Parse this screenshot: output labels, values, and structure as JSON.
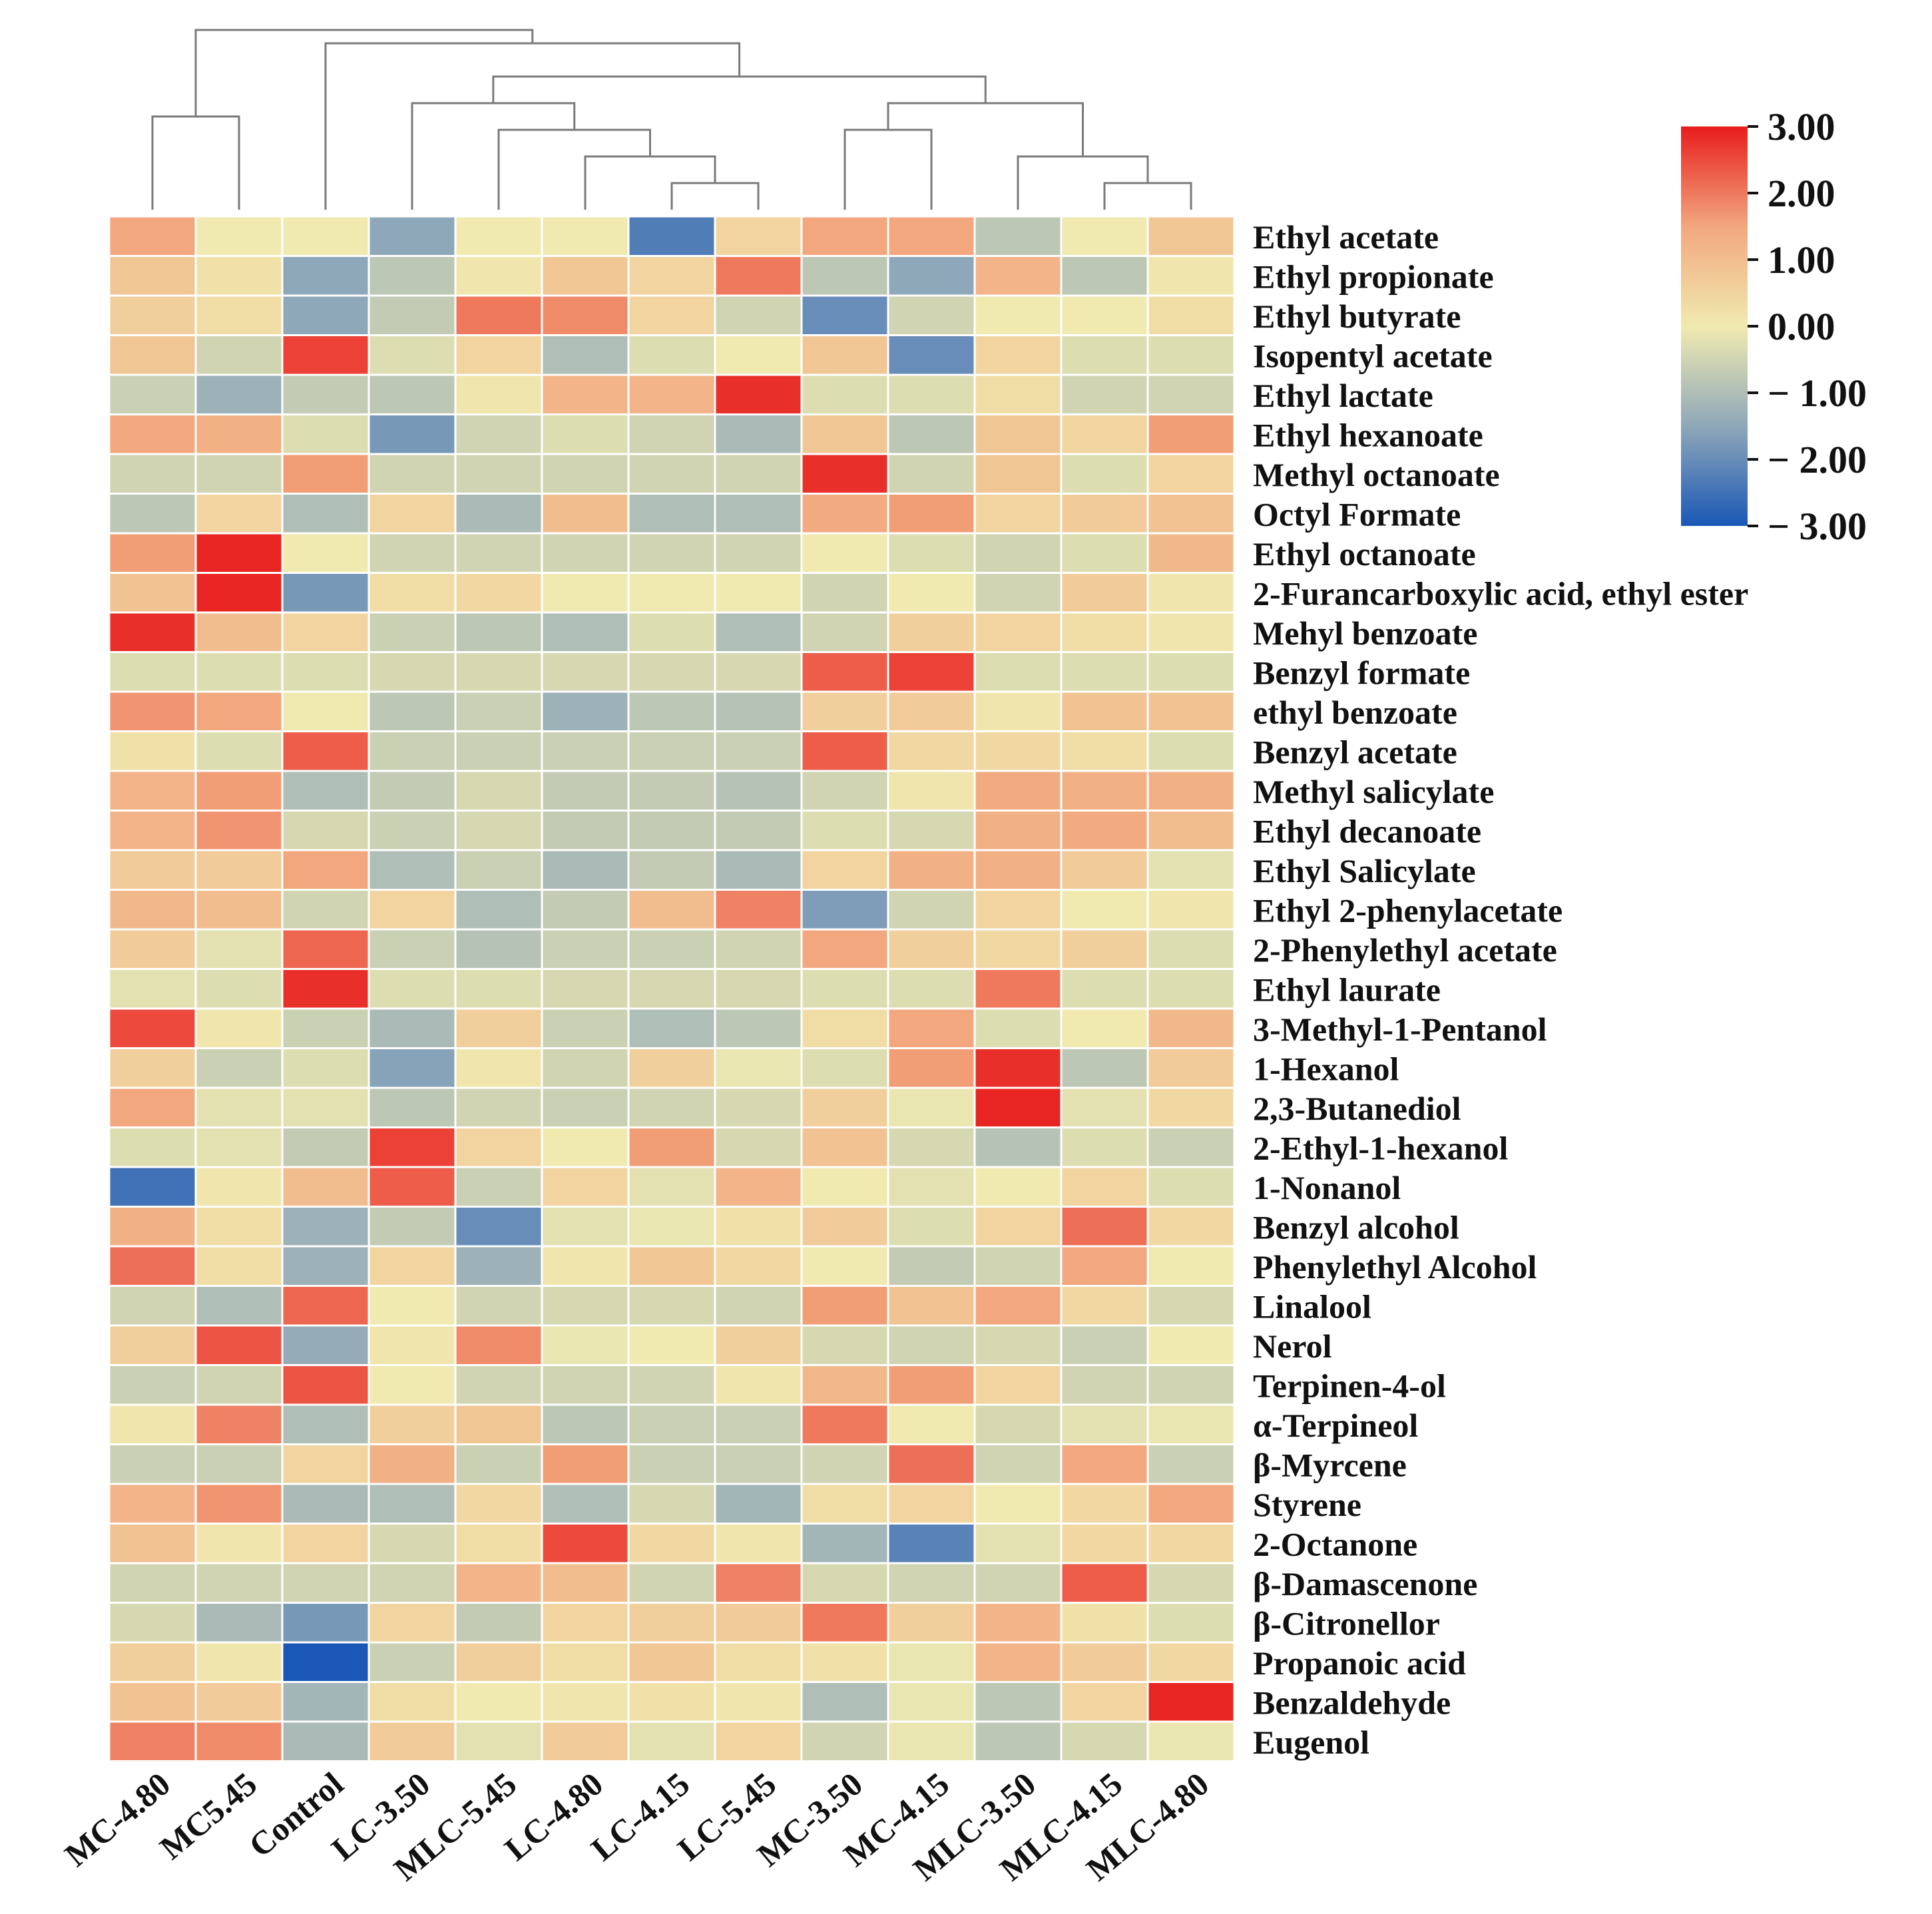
{
  "chart_data": {
    "type": "heatmap",
    "title": "",
    "columns": [
      "MC-4.80",
      "MC5.45",
      "Control",
      "LC-3.50",
      "MLC-5.45",
      "LC-4.80",
      "LC-4.15",
      "LC-5.45",
      "MC-3.50",
      "MC-4.15",
      "MLC-3.50",
      "MLC-4.15",
      "MLC-4.80"
    ],
    "rows": [
      "Ethyl acetate",
      "Ethyl propionate",
      "Ethyl butyrate",
      "Isopentyl acetate",
      "Ethyl lactate",
      "Ethyl hexanoate",
      "Methyl octanoate",
      "Octyl Formate",
      "Ethyl octanoate",
      "2-Furancarboxylic acid, ethyl ester",
      "Mehyl benzoate",
      "Benzyl formate",
      "ethyl benzoate",
      "Benzyl acetate",
      "Methyl salicylate",
      "Ethyl decanoate",
      "Ethyl Salicylate",
      "Ethyl 2-phenylacetate",
      "2-Phenylethyl acetate",
      "Ethyl laurate",
      "3-Methyl-1-Pentanol",
      "1-Hexanol",
      "2,3-Butanediol",
      "2-Ethyl-1-hexanol",
      "1-Nonanol",
      "Benzyl alcohol",
      "Phenylethyl Alcohol",
      "Linalool",
      "Nerol",
      "Terpinen-4-ol",
      "α-Terpineol",
      "β-Myrcene",
      "Styrene",
      "2-Octanone",
      "β-Damascenone",
      "β-Citronellor",
      "Propanoic acid",
      "Benzaldehyde",
      "Eugenol"
    ],
    "values": [
      [
        1.5,
        0.0,
        0.0,
        -1.5,
        0.0,
        0.0,
        -2.3,
        0.5,
        1.5,
        1.5,
        -0.8,
        0.0,
        0.8
      ],
      [
        0.8,
        0.2,
        -1.5,
        -0.8,
        0.1,
        0.8,
        0.5,
        2.0,
        -0.8,
        -1.5,
        1.2,
        -0.8,
        0.1
      ],
      [
        0.6,
        0.3,
        -1.5,
        -0.7,
        2.0,
        1.8,
        0.5,
        -0.5,
        -2.0,
        -0.5,
        0.0,
        0.0,
        0.3
      ],
      [
        0.8,
        -0.5,
        2.6,
        -0.3,
        0.5,
        -1.0,
        -0.3,
        0.0,
        0.8,
        -2.0,
        0.5,
        -0.3,
        -0.3
      ],
      [
        -0.6,
        -1.3,
        -0.7,
        -0.8,
        0.1,
        1.2,
        1.2,
        2.8,
        -0.3,
        -0.3,
        0.3,
        -0.5,
        -0.5
      ],
      [
        1.5,
        1.3,
        -0.3,
        -1.8,
        -0.5,
        -0.3,
        -0.5,
        -1.1,
        0.8,
        -0.8,
        0.8,
        0.5,
        1.6
      ],
      [
        -0.5,
        -0.5,
        1.6,
        -0.5,
        -0.5,
        -0.5,
        -0.5,
        -0.5,
        2.8,
        -0.5,
        0.8,
        -0.3,
        0.5
      ],
      [
        -0.8,
        0.5,
        -1.0,
        0.5,
        -1.1,
        1.0,
        -1.0,
        -1.0,
        1.4,
        1.6,
        0.5,
        0.7,
        0.9
      ],
      [
        1.6,
        2.9,
        0.0,
        -0.5,
        -0.5,
        -0.5,
        -0.5,
        -0.5,
        0.0,
        -0.3,
        -0.5,
        -0.3,
        1.1
      ],
      [
        0.9,
        2.9,
        -1.8,
        0.3,
        0.4,
        0.0,
        0.0,
        0.0,
        -0.5,
        0.0,
        -0.5,
        0.7,
        0.1
      ],
      [
        2.8,
        1.0,
        0.5,
        -0.6,
        -0.8,
        -1.0,
        -0.3,
        -1.0,
        -0.5,
        0.6,
        0.5,
        0.3,
        0.1
      ],
      [
        -0.3,
        -0.3,
        -0.3,
        -0.4,
        -0.4,
        -0.4,
        -0.4,
        -0.4,
        2.3,
        2.6,
        -0.3,
        -0.3,
        -0.3
      ],
      [
        1.7,
        1.5,
        0.0,
        -0.8,
        -0.6,
        -1.3,
        -0.8,
        -0.9,
        0.6,
        0.7,
        0.1,
        0.9,
        0.9
      ],
      [
        0.2,
        -0.3,
        2.3,
        -0.6,
        -0.6,
        -0.6,
        -0.6,
        -0.6,
        2.3,
        0.4,
        0.4,
        0.3,
        -0.3
      ],
      [
        1.2,
        1.6,
        -1.0,
        -0.7,
        -0.4,
        -0.7,
        -0.7,
        -0.9,
        -0.5,
        0.1,
        1.4,
        1.3,
        1.3
      ],
      [
        1.2,
        1.7,
        -0.4,
        -0.6,
        -0.4,
        -0.7,
        -0.7,
        -0.7,
        -0.3,
        -0.4,
        1.3,
        1.4,
        1.0
      ],
      [
        0.7,
        0.7,
        1.5,
        -1.0,
        -0.6,
        -1.1,
        -0.7,
        -1.1,
        0.5,
        1.3,
        1.3,
        0.7,
        -0.2
      ],
      [
        1.1,
        1.0,
        -0.5,
        0.5,
        -1.0,
        -0.7,
        1.0,
        1.9,
        -1.7,
        -0.5,
        0.5,
        0.0,
        0.1
      ],
      [
        0.7,
        -0.2,
        2.2,
        -0.6,
        -0.9,
        -0.6,
        -0.6,
        -0.5,
        1.5,
        0.6,
        0.4,
        0.6,
        -0.3
      ],
      [
        -0.2,
        -0.3,
        2.8,
        -0.3,
        -0.3,
        -0.4,
        -0.4,
        -0.4,
        -0.3,
        -0.3,
        2.0,
        -0.3,
        -0.3
      ],
      [
        2.5,
        0.1,
        -0.6,
        -1.1,
        0.6,
        -0.6,
        -1.0,
        -0.8,
        0.3,
        1.5,
        -0.3,
        0.0,
        1.1
      ],
      [
        0.6,
        -0.6,
        -0.3,
        -1.6,
        0.1,
        -0.5,
        0.6,
        -0.1,
        -0.3,
        1.6,
        2.8,
        -0.8,
        0.7
      ],
      [
        1.5,
        -0.2,
        -0.2,
        -0.8,
        -0.5,
        -0.6,
        -0.5,
        -0.4,
        0.6,
        -0.1,
        2.9,
        -0.2,
        0.4
      ],
      [
        -0.3,
        -0.2,
        -0.7,
        2.6,
        0.5,
        0.0,
        1.6,
        -0.4,
        0.9,
        -0.4,
        -0.9,
        -0.3,
        -0.6
      ],
      [
        -2.5,
        0.1,
        1.0,
        2.3,
        -0.6,
        0.5,
        -0.2,
        1.2,
        0.0,
        -0.2,
        0.0,
        0.5,
        -0.3
      ],
      [
        1.3,
        0.3,
        -1.3,
        -0.7,
        -2.0,
        -0.2,
        -0.1,
        0.2,
        0.7,
        -0.3,
        0.5,
        2.1,
        0.4
      ],
      [
        2.1,
        0.3,
        -1.3,
        0.5,
        -1.3,
        0.1,
        0.8,
        0.4,
        0.0,
        -0.7,
        -0.5,
        1.5,
        0.0
      ],
      [
        -0.5,
        -1.0,
        2.2,
        0.0,
        -0.5,
        -0.4,
        -0.4,
        -0.5,
        1.6,
        0.9,
        1.5,
        0.4,
        -0.4
      ],
      [
        0.6,
        2.4,
        -1.4,
        0.1,
        1.8,
        -0.1,
        0.0,
        0.6,
        -0.4,
        -0.5,
        -0.4,
        -0.6,
        0.0
      ],
      [
        -0.6,
        -0.5,
        2.4,
        0.0,
        -0.5,
        -0.5,
        -0.5,
        0.1,
        1.1,
        1.6,
        0.5,
        -0.5,
        -0.5
      ],
      [
        0.1,
        1.9,
        -1.0,
        0.6,
        0.8,
        -0.8,
        -0.6,
        -0.6,
        2.0,
        0.0,
        -0.4,
        -0.2,
        -0.1
      ],
      [
        -0.6,
        -0.6,
        0.5,
        1.3,
        -0.6,
        1.6,
        -0.6,
        -0.6,
        -0.5,
        2.1,
        -0.5,
        1.5,
        -0.6
      ],
      [
        1.2,
        1.7,
        -1.1,
        -1.0,
        0.4,
        -1.0,
        -0.4,
        -1.2,
        0.3,
        0.5,
        0.0,
        0.4,
        1.5
      ],
      [
        0.9,
        0.1,
        0.5,
        -0.4,
        0.3,
        2.5,
        0.4,
        0.1,
        -1.2,
        -2.2,
        -0.2,
        0.4,
        0.4
      ],
      [
        -0.5,
        -0.5,
        -0.5,
        -0.5,
        1.2,
        1.0,
        -0.5,
        1.9,
        -0.4,
        -0.5,
        -0.5,
        2.3,
        -0.4
      ],
      [
        -0.4,
        -1.1,
        -1.8,
        0.5,
        -0.7,
        0.5,
        0.6,
        0.7,
        2.0,
        0.6,
        1.2,
        0.2,
        -0.3
      ],
      [
        0.6,
        0.1,
        -3.0,
        -0.6,
        0.6,
        0.3,
        0.8,
        0.3,
        0.2,
        -0.1,
        1.2,
        0.7,
        0.4
      ],
      [
        0.9,
        0.7,
        -1.2,
        0.3,
        0.0,
        0.1,
        0.2,
        0.1,
        -1.0,
        -0.1,
        -0.8,
        0.5,
        2.9
      ],
      [
        1.9,
        1.8,
        -1.1,
        0.7,
        -0.2,
        0.7,
        -0.2,
        0.5,
        -0.5,
        -0.1,
        -0.8,
        -0.4,
        -0.1
      ]
    ],
    "colorbar": {
      "min": -3.0,
      "max": 3.0,
      "ticks": [
        3.0,
        2.0,
        1.0,
        0.0,
        -1.0,
        -2.0,
        -3.0
      ],
      "tick_labels": [
        "3.00",
        "2.00",
        "1.00",
        "0.00",
        "− 1.00",
        "− 2.00",
        "− 3.00"
      ],
      "colormap": "RdYlBu_r"
    },
    "colors": {
      "low": "#1a57b6",
      "mid_low": "#8fa8b9",
      "mid": "#f0eab0",
      "mid_high": "#f2a77e",
      "high": "#e81c1c",
      "grid": "#ffffff",
      "dendrogram": "#7a7a7a"
    },
    "column_dendrogram": {
      "merges": [
        [
          6,
          7
        ],
        [
          5,
          13
        ],
        [
          4,
          14
        ],
        [
          3,
          15
        ],
        [
          11,
          12
        ],
        [
          10,
          17
        ],
        [
          8,
          9
        ],
        [
          19,
          18
        ],
        [
          16,
          20
        ],
        [
          2,
          21
        ],
        [
          0,
          1
        ],
        [
          23,
          22
        ]
      ]
    }
  }
}
